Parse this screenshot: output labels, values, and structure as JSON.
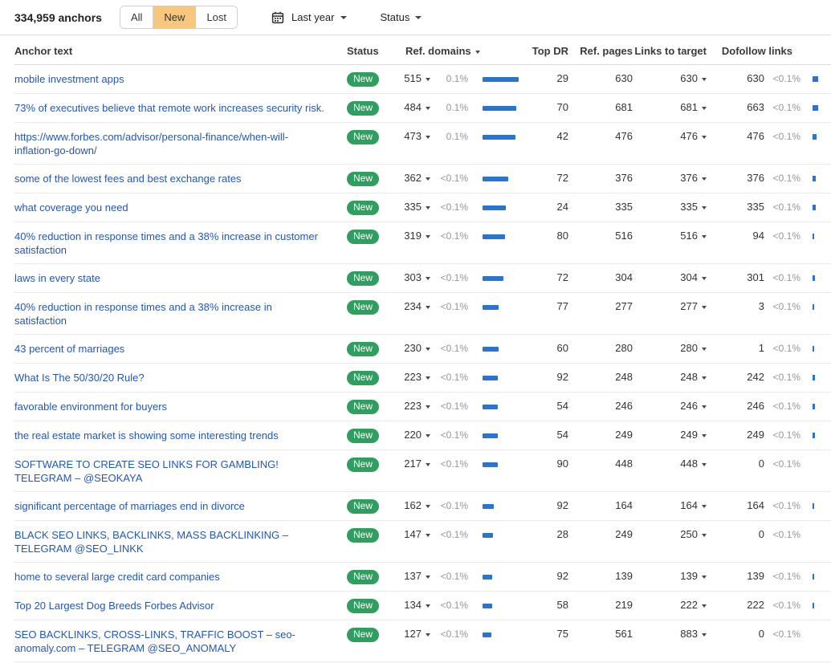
{
  "toolbar": {
    "count_label": "334,959 anchors",
    "view_segments": [
      {
        "label": "All",
        "selected": false
      },
      {
        "label": "New",
        "selected": true
      },
      {
        "label": "Lost",
        "selected": false
      }
    ],
    "date_filter_label": "Last year",
    "status_filter_label": "Status",
    "icons": {
      "date_filter": "calendar-icon",
      "dropdown": "chevron-down-icon"
    }
  },
  "table": {
    "headers": {
      "anchor": "Anchor text",
      "status": "Status",
      "ref_domains": "Ref. domains",
      "top_dr": "Top DR",
      "ref_pages": "Ref. pages",
      "links_to_target": "Links to target",
      "dofollow_links": "Dofollow links"
    },
    "sorted_column": "ref_domains",
    "rows": [
      {
        "anchor": "mobile investment apps",
        "status": "New",
        "ref_domains": 515,
        "ref_domains_pct": "0.1%",
        "top_dr": 29,
        "ref_pages": 630,
        "links_to_target": 630,
        "dofollow_links": 630,
        "dofollow_pct": "<0.1%"
      },
      {
        "anchor": "73% of executives believe that remote work increases security risk.",
        "status": "New",
        "ref_domains": 484,
        "ref_domains_pct": "0.1%",
        "top_dr": 70,
        "ref_pages": 681,
        "links_to_target": 681,
        "dofollow_links": 663,
        "dofollow_pct": "<0.1%"
      },
      {
        "anchor": "https://www.forbes.com/advisor/personal-finance/when-will-inflation-go-down/",
        "status": "New",
        "ref_domains": 473,
        "ref_domains_pct": "0.1%",
        "top_dr": 42,
        "ref_pages": 476,
        "links_to_target": 476,
        "dofollow_links": 476,
        "dofollow_pct": "<0.1%"
      },
      {
        "anchor": "some of the lowest fees and best exchange rates",
        "status": "New",
        "ref_domains": 362,
        "ref_domains_pct": "<0.1%",
        "top_dr": 72,
        "ref_pages": 376,
        "links_to_target": 376,
        "dofollow_links": 376,
        "dofollow_pct": "<0.1%"
      },
      {
        "anchor": "what coverage you need",
        "status": "New",
        "ref_domains": 335,
        "ref_domains_pct": "<0.1%",
        "top_dr": 24,
        "ref_pages": 335,
        "links_to_target": 335,
        "dofollow_links": 335,
        "dofollow_pct": "<0.1%"
      },
      {
        "anchor": "40% reduction in response times and a 38% increase in customer satisfaction",
        "status": "New",
        "ref_domains": 319,
        "ref_domains_pct": "<0.1%",
        "top_dr": 80,
        "ref_pages": 516,
        "links_to_target": 516,
        "dofollow_links": 94,
        "dofollow_pct": "<0.1%"
      },
      {
        "anchor": "laws in every state",
        "status": "New",
        "ref_domains": 303,
        "ref_domains_pct": "<0.1%",
        "top_dr": 72,
        "ref_pages": 304,
        "links_to_target": 304,
        "dofollow_links": 301,
        "dofollow_pct": "<0.1%"
      },
      {
        "anchor": "40% reduction in response times and a 38% increase in satisfaction",
        "status": "New",
        "ref_domains": 234,
        "ref_domains_pct": "<0.1%",
        "top_dr": 77,
        "ref_pages": 277,
        "links_to_target": 277,
        "dofollow_links": 3,
        "dofollow_pct": "<0.1%"
      },
      {
        "anchor": "43 percent of marriages",
        "status": "New",
        "ref_domains": 230,
        "ref_domains_pct": "<0.1%",
        "top_dr": 60,
        "ref_pages": 280,
        "links_to_target": 280,
        "dofollow_links": 1,
        "dofollow_pct": "<0.1%"
      },
      {
        "anchor": "What Is The 50/30/20 Rule?",
        "status": "New",
        "ref_domains": 223,
        "ref_domains_pct": "<0.1%",
        "top_dr": 92,
        "ref_pages": 248,
        "links_to_target": 248,
        "dofollow_links": 242,
        "dofollow_pct": "<0.1%"
      },
      {
        "anchor": "favorable environment for buyers",
        "status": "New",
        "ref_domains": 223,
        "ref_domains_pct": "<0.1%",
        "top_dr": 54,
        "ref_pages": 246,
        "links_to_target": 246,
        "dofollow_links": 246,
        "dofollow_pct": "<0.1%"
      },
      {
        "anchor": "the real estate market is showing some interesting trends",
        "status": "New",
        "ref_domains": 220,
        "ref_domains_pct": "<0.1%",
        "top_dr": 54,
        "ref_pages": 249,
        "links_to_target": 249,
        "dofollow_links": 249,
        "dofollow_pct": "<0.1%"
      },
      {
        "anchor": "SOFTWARE TO CREATE SEO LINKS FOR GAMBLING! TELEGRAM – @SEOKAYA",
        "status": "New",
        "ref_domains": 217,
        "ref_domains_pct": "<0.1%",
        "top_dr": 90,
        "ref_pages": 448,
        "links_to_target": 448,
        "dofollow_links": 0,
        "dofollow_pct": "<0.1%"
      },
      {
        "anchor": "significant percentage of marriages end in divorce",
        "status": "New",
        "ref_domains": 162,
        "ref_domains_pct": "<0.1%",
        "top_dr": 92,
        "ref_pages": 164,
        "links_to_target": 164,
        "dofollow_links": 164,
        "dofollow_pct": "<0.1%"
      },
      {
        "anchor": "BLACK SEO LINKS, BACKLINKS, MASS BACKLINKING – TELEGRAM @SEO_LINKK",
        "status": "New",
        "ref_domains": 147,
        "ref_domains_pct": "<0.1%",
        "top_dr": 28,
        "ref_pages": 249,
        "links_to_target": 250,
        "dofollow_links": 0,
        "dofollow_pct": "<0.1%"
      },
      {
        "anchor": "home to several large credit card companies",
        "status": "New",
        "ref_domains": 137,
        "ref_domains_pct": "<0.1%",
        "top_dr": 92,
        "ref_pages": 139,
        "links_to_target": 139,
        "dofollow_links": 139,
        "dofollow_pct": "<0.1%"
      },
      {
        "anchor": "Top 20 Largest Dog Breeds Forbes Advisor",
        "status": "New",
        "ref_domains": 134,
        "ref_domains_pct": "<0.1%",
        "top_dr": 58,
        "ref_pages": 219,
        "links_to_target": 222,
        "dofollow_links": 222,
        "dofollow_pct": "<0.1%"
      },
      {
        "anchor": "SEO BACKLINKS, CROSS-LINKS, TRAFFIC BOOST – seo-anomaly.com – TELEGRAM @SEO_ANOMALY",
        "status": "New",
        "ref_domains": 127,
        "ref_domains_pct": "<0.1%",
        "top_dr": 75,
        "ref_pages": 561,
        "links_to_target": 883,
        "dofollow_links": 0,
        "dofollow_pct": "<0.1%"
      }
    ]
  },
  "colors": {
    "link_blue": "#2457b5",
    "bar_blue": "#2a74d1",
    "badge_green": "#2f9e5f",
    "selected_orange": "#f7c780",
    "muted_gray": "#969696"
  }
}
